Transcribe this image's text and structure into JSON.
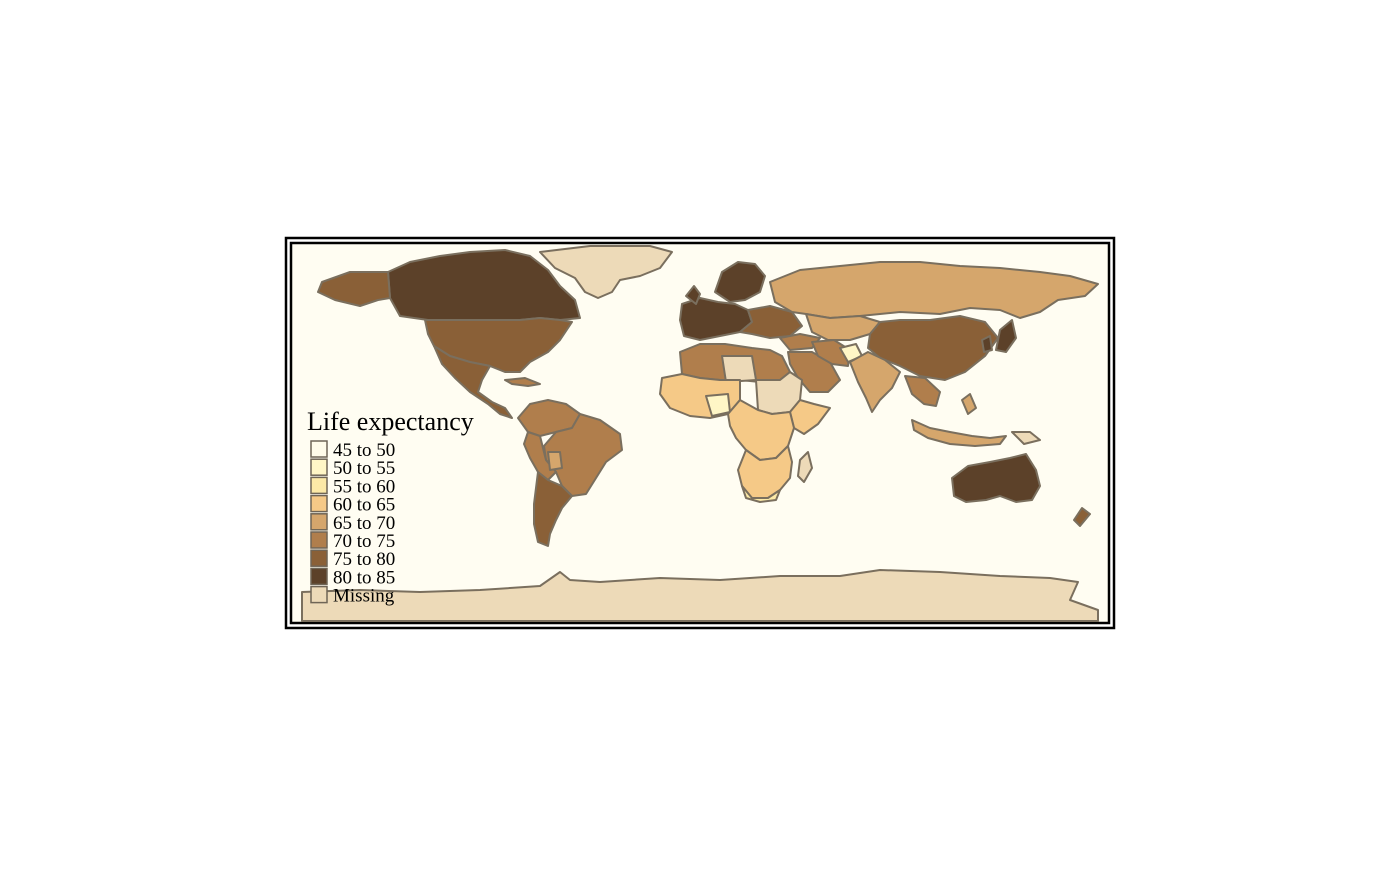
{
  "legend": {
    "title": "Life expectancy",
    "classes": [
      {
        "label": "45 to 50",
        "color": "#fffbe9"
      },
      {
        "label": "50 to 55",
        "color": "#fff6c6"
      },
      {
        "label": "55 to 60",
        "color": "#fce9a7"
      },
      {
        "label": "60 to 65",
        "color": "#f5c987"
      },
      {
        "label": "65 to 70",
        "color": "#d5a66c"
      },
      {
        "label": "70 to 75",
        "color": "#b07e4c"
      },
      {
        "label": "75 to 80",
        "color": "#8a6037"
      },
      {
        "label": "80 to 85",
        "color": "#5c4129"
      },
      {
        "label": "Missing",
        "color": "#eddab8"
      }
    ]
  },
  "colors": {
    "ocean": "#fffdf2",
    "border": "#7a6f5e",
    "frame": "#000000"
  }
}
